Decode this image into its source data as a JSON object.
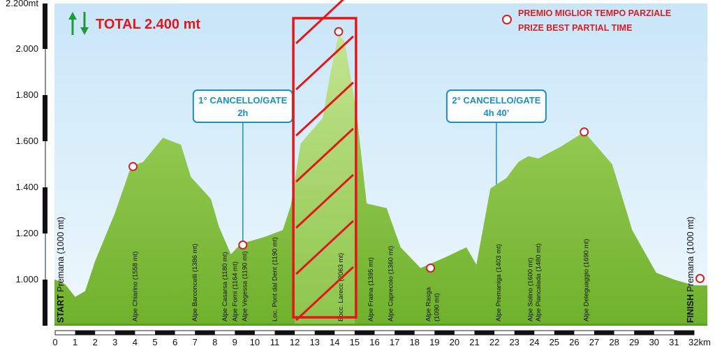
{
  "total": {
    "label": "TOTAL 2.400 mt"
  },
  "legend": {
    "line1": "PREMIO MIGLIOR TEMPO PARZIALE",
    "line2": "PRIZE BEST PARTIAL TIME"
  },
  "colors": {
    "sky": "#daeefa",
    "terrain": "#7dbd2f",
    "terrain_light": "#b4dc7a",
    "highlight": "#e3161b",
    "gate": "#1b8fc0",
    "arrow": "#1e9a3a"
  },
  "chart_data": {
    "type": "area",
    "xlabel": "",
    "ylabel": "",
    "x_unit": "km",
    "y_unit": "mt",
    "xlim": [
      0,
      32
    ],
    "ylim": [
      950,
      2200
    ],
    "xticks": [
      {
        "v": 0,
        "label": "0"
      },
      {
        "v": 1,
        "label": "1"
      },
      {
        "v": 2,
        "label": "2"
      },
      {
        "v": 3,
        "label": "3"
      },
      {
        "v": 4,
        "label": "4"
      },
      {
        "v": 5,
        "label": "5"
      },
      {
        "v": 6,
        "label": "6"
      },
      {
        "v": 7,
        "label": "7"
      },
      {
        "v": 8,
        "label": "8"
      },
      {
        "v": 9,
        "label": "9"
      },
      {
        "v": 10,
        "label": "10"
      },
      {
        "v": 11,
        "label": "11"
      },
      {
        "v": 12,
        "label": "12"
      },
      {
        "v": 13,
        "label": "13"
      },
      {
        "v": 14,
        "label": "14"
      },
      {
        "v": 15,
        "label": "15"
      },
      {
        "v": 16,
        "label": "16"
      },
      {
        "v": 17,
        "label": "17"
      },
      {
        "v": 18,
        "label": "18"
      },
      {
        "v": 19,
        "label": "19"
      },
      {
        "v": 20,
        "label": "20"
      },
      {
        "v": 21,
        "label": "21"
      },
      {
        "v": 22,
        "label": "22"
      },
      {
        "v": 23,
        "label": "23"
      },
      {
        "v": 24,
        "label": "24"
      },
      {
        "v": 25,
        "label": "25"
      },
      {
        "v": 26,
        "label": "26"
      },
      {
        "v": 27,
        "label": "27"
      },
      {
        "v": 28,
        "label": "28"
      },
      {
        "v": 29,
        "label": "29"
      },
      {
        "v": 30,
        "label": "30"
      },
      {
        "v": 31,
        "label": "31"
      },
      {
        "v": 32,
        "label": "32km"
      }
    ],
    "yticks": [
      {
        "v": 1000,
        "label": "1.000"
      },
      {
        "v": 1200,
        "label": "1.200"
      },
      {
        "v": 1400,
        "label": "1.400"
      },
      {
        "v": 1600,
        "label": "1.600"
      },
      {
        "v": 1800,
        "label": "1.800"
      },
      {
        "v": 2000,
        "label": "2.000"
      },
      {
        "v": 2200,
        "label": "2.200mt"
      }
    ],
    "profile": [
      [
        0,
        1000
      ],
      [
        0.5,
        980
      ],
      [
        1,
        925
      ],
      [
        1.5,
        950
      ],
      [
        2,
        1080
      ],
      [
        3,
        1290
      ],
      [
        3.8,
        1490
      ],
      [
        4.4,
        1510
      ],
      [
        5.4,
        1615
      ],
      [
        6.3,
        1585
      ],
      [
        6.8,
        1445
      ],
      [
        7.8,
        1350
      ],
      [
        8.2,
        1230
      ],
      [
        8.8,
        1110
      ],
      [
        9.3,
        1155
      ],
      [
        10.5,
        1185
      ],
      [
        11.4,
        1215
      ],
      [
        11.8,
        1320
      ],
      [
        12.3,
        1590
      ],
      [
        12.8,
        1640
      ],
      [
        13.4,
        1700
      ],
      [
        13.8,
        1900
      ],
      [
        14.2,
        2063
      ],
      [
        14.5,
        2030
      ],
      [
        15.1,
        1720
      ],
      [
        15.6,
        1330
      ],
      [
        16.6,
        1310
      ],
      [
        17.3,
        1140
      ],
      [
        18.3,
        1050
      ],
      [
        19.5,
        1095
      ],
      [
        20.6,
        1140
      ],
      [
        21.1,
        1065
      ],
      [
        21.8,
        1395
      ],
      [
        22.6,
        1440
      ],
      [
        23.2,
        1510
      ],
      [
        23.7,
        1535
      ],
      [
        24.2,
        1525
      ],
      [
        25.3,
        1575
      ],
      [
        26.5,
        1640
      ],
      [
        27.9,
        1500
      ],
      [
        28.9,
        1215
      ],
      [
        30.1,
        1030
      ],
      [
        31,
        1000
      ],
      [
        32,
        975
      ]
    ],
    "waypoints": [
      {
        "x": 0,
        "label": "Premana (1000 mt)",
        "prefix": "START",
        "type": "start"
      },
      {
        "x": 4,
        "label": "Alpe Chiarino (1558 mt)"
      },
      {
        "x": 7,
        "label": "Alpe Barconcelli (1386 mt)"
      },
      {
        "x": 8.5,
        "label": "Alpe Casarsa (1180 mt)"
      },
      {
        "x": 9,
        "label": "Alpe Forni (1164 mt)"
      },
      {
        "x": 9.5,
        "label": "Alpe Vegessa (1190 mt)"
      },
      {
        "x": 11,
        "label": "Loc. Pont dal Dent (1190 mt)"
      },
      {
        "x": 14.3,
        "label": "Bocc. Larecc (2063 mt)"
      },
      {
        "x": 15.8,
        "label": "Alpe Fraina (1395 mt)"
      },
      {
        "x": 16.8,
        "label": "Alpe Caprecolo (1360 mt)"
      },
      {
        "x": 18.7,
        "label": "Alpe Rasga",
        "label2": "(1090 mt)"
      },
      {
        "x": 22.2,
        "label": "Alpe Premaniga (1403 mt)"
      },
      {
        "x": 23.8,
        "label": "Alpe Solino (1600 mt)"
      },
      {
        "x": 24.2,
        "label": "Alpe Piancalada (1480 mt)"
      },
      {
        "x": 26.6,
        "label": "Alpe Deleguaggio (1690 mt)"
      },
      {
        "x": 32,
        "label": "Premana (1000 mt)",
        "prefix": "FINISH",
        "type": "finish"
      }
    ],
    "prize_markers": [
      {
        "x": 3.9,
        "y": 1490
      },
      {
        "x": 9.4,
        "y": 1150
      },
      {
        "x": 14.2,
        "y": 2075
      },
      {
        "x": 18.8,
        "y": 1050
      },
      {
        "x": 26.5,
        "y": 1640
      },
      {
        "x": 32.3,
        "y": 1005
      }
    ],
    "gates": [
      {
        "x": 9.4,
        "y_top": 1690,
        "title": "1° CANCELLO/GATE",
        "time": "2h"
      },
      {
        "x": 22.1,
        "y_top": 1690,
        "title": "2° CANCELLO/GATE",
        "time": "4h 40’"
      }
    ],
    "highlight_segment": {
      "x0": 12,
      "x1": 15
    }
  }
}
